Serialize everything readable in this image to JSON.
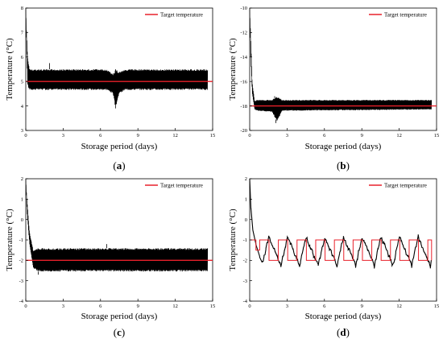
{
  "panels": [
    {
      "caption_label": "a",
      "chart_data": {
        "type": "line",
        "xlabel": "Storage period (days)",
        "ylabel": "Temperature (°C)",
        "xlim": [
          0,
          15
        ],
        "ylim": [
          3,
          8
        ],
        "xticks": [
          0,
          3,
          6,
          9,
          12,
          15
        ],
        "yticks": [
          3,
          4,
          5,
          6,
          7,
          8
        ],
        "xtick_labels": [
          "0",
          "3",
          "6",
          "9",
          "12",
          "15"
        ],
        "ytick_labels": [
          "3",
          "4",
          "5",
          "6",
          "7",
          "8"
        ],
        "legend_position": "top-right",
        "series": [
          {
            "name": "Target temperature",
            "color": "#e8202a",
            "style": "flat",
            "value": 5.0
          },
          {
            "color": "#000000",
            "style": "oscillation",
            "x": [
              0,
              0.06,
              0.15,
              0.3,
              0.5,
              6.5,
              7.0,
              7.2,
              7.5,
              8.0,
              14.6
            ],
            "low": [
              8,
              6.5,
              4.8,
              4.65,
              4.65,
              4.65,
              4.5,
              3.9,
              4.5,
              4.65,
              4.65
            ],
            "high": [
              8,
              7.2,
              6.0,
              5.5,
              5.5,
              5.5,
              5.3,
              5.5,
              5.4,
              5.5,
              5.5
            ],
            "x_end": 14.6,
            "spikes": [
              [
                1.9,
                5.75
              ],
              [
                7.2,
                3.9
              ]
            ]
          }
        ]
      }
    },
    {
      "caption_label": "b",
      "chart_data": {
        "type": "line",
        "xlabel": "Storage period (days)",
        "ylabel": "Temperature (°C)",
        "xlim": [
          0,
          15
        ],
        "ylim": [
          -20,
          -10
        ],
        "xticks": [
          0,
          3,
          6,
          9,
          12,
          15
        ],
        "yticks": [
          -20,
          -18,
          -16,
          -14,
          -12,
          -10
        ],
        "xtick_labels": [
          "0",
          "3",
          "6",
          "9",
          "12",
          "15"
        ],
        "ytick_labels": [
          "-20",
          "-18",
          "-16",
          "-14",
          "-12",
          "-10"
        ],
        "legend_position": "top-right",
        "series": [
          {
            "name": "Target temperature",
            "color": "#e8202a",
            "style": "flat",
            "value": -18.0
          },
          {
            "color": "#000000",
            "style": "oscillation",
            "x": [
              0,
              0.08,
              0.2,
              0.4,
              0.6,
              1.8,
              2.2,
              2.6,
              14.6
            ],
            "low": [
              -10,
              -14,
              -17.0,
              -18.3,
              -18.4,
              -18.5,
              -19.3,
              -18.4,
              -18.3
            ],
            "high": [
              -10,
              -12,
              -16.0,
              -17.6,
              -17.5,
              -17.5,
              -17.2,
              -17.5,
              -17.5
            ],
            "x_end": 14.6,
            "spikes": [
              [
                2.1,
                -19.4
              ],
              [
                2.0,
                -17.2
              ]
            ]
          }
        ]
      }
    },
    {
      "caption_label": "c",
      "chart_data": {
        "type": "line",
        "xlabel": "Storage period (days)",
        "ylabel": "Temperature (°C)",
        "xlim": [
          0,
          15
        ],
        "ylim": [
          -4,
          2
        ],
        "xticks": [
          0,
          3,
          6,
          9,
          12,
          15
        ],
        "yticks": [
          -4,
          -3,
          -2,
          -1,
          0,
          1,
          2
        ],
        "xtick_labels": [
          "0",
          "3",
          "6",
          "9",
          "12",
          "15"
        ],
        "ytick_labels": [
          "-4",
          "-3",
          "-2",
          "-1",
          "0",
          "1",
          "2"
        ],
        "legend_position": "top-right",
        "series": [
          {
            "name": "Target temperature",
            "color": "#e8202a",
            "style": "flat",
            "value": -2.0
          },
          {
            "color": "#000000",
            "style": "oscillation",
            "x": [
              0,
              0.1,
              0.3,
              0.6,
              1.0,
              14.6
            ],
            "low": [
              2,
              0.3,
              -1.2,
              -2.4,
              -2.55,
              -2.55
            ],
            "high": [
              2,
              1.0,
              -0.6,
              -1.5,
              -1.4,
              -1.4
            ],
            "x_end": 14.6,
            "spikes": [
              [
                6.5,
                -1.2
              ],
              [
                1.0,
                -2.7
              ]
            ]
          }
        ]
      }
    },
    {
      "caption_label": "d",
      "chart_data": {
        "type": "line",
        "xlabel": "Storage period (days)",
        "ylabel": "Temperature (°C)",
        "xlim": [
          0,
          15
        ],
        "ylim": [
          -4,
          2
        ],
        "xticks": [
          0,
          3,
          6,
          9,
          12,
          15
        ],
        "yticks": [
          -4,
          -3,
          -2,
          -1,
          0,
          1,
          2
        ],
        "xtick_labels": [
          "0",
          "3",
          "6",
          "9",
          "12",
          "15"
        ],
        "ytick_labels": [
          "-4",
          "-3",
          "-2",
          "-1",
          "0",
          "1",
          "2"
        ],
        "legend_position": "top-right",
        "series": [
          {
            "name": "Target temperature",
            "color": "#e8202a",
            "style": "cyclic",
            "x_start": 0,
            "x_end": 14.6,
            "high": -1.0,
            "low": -2.0,
            "period": 1.5,
            "initial": [
              [
                0.0,
                -1.0
              ],
              [
                0.5,
                -1.0
              ],
              [
                0.5,
                -1.5
              ],
              [
                0.8,
                -1.5
              ]
            ]
          },
          {
            "color": "#000000",
            "style": "cyclic_response",
            "x_start": 0,
            "x_end": 14.6,
            "period": 1.5,
            "initial": [
              [
                0.0,
                2.0
              ],
              [
                0.1,
                0.5
              ],
              [
                0.25,
                -0.5
              ],
              [
                0.5,
                -1.2
              ],
              [
                0.8,
                -1.8
              ],
              [
                1.0,
                -2.1
              ]
            ],
            "cycle_peak": -0.85,
            "cycle_low": -2.25
          }
        ]
      }
    }
  ],
  "legend_label": "Target temperature"
}
